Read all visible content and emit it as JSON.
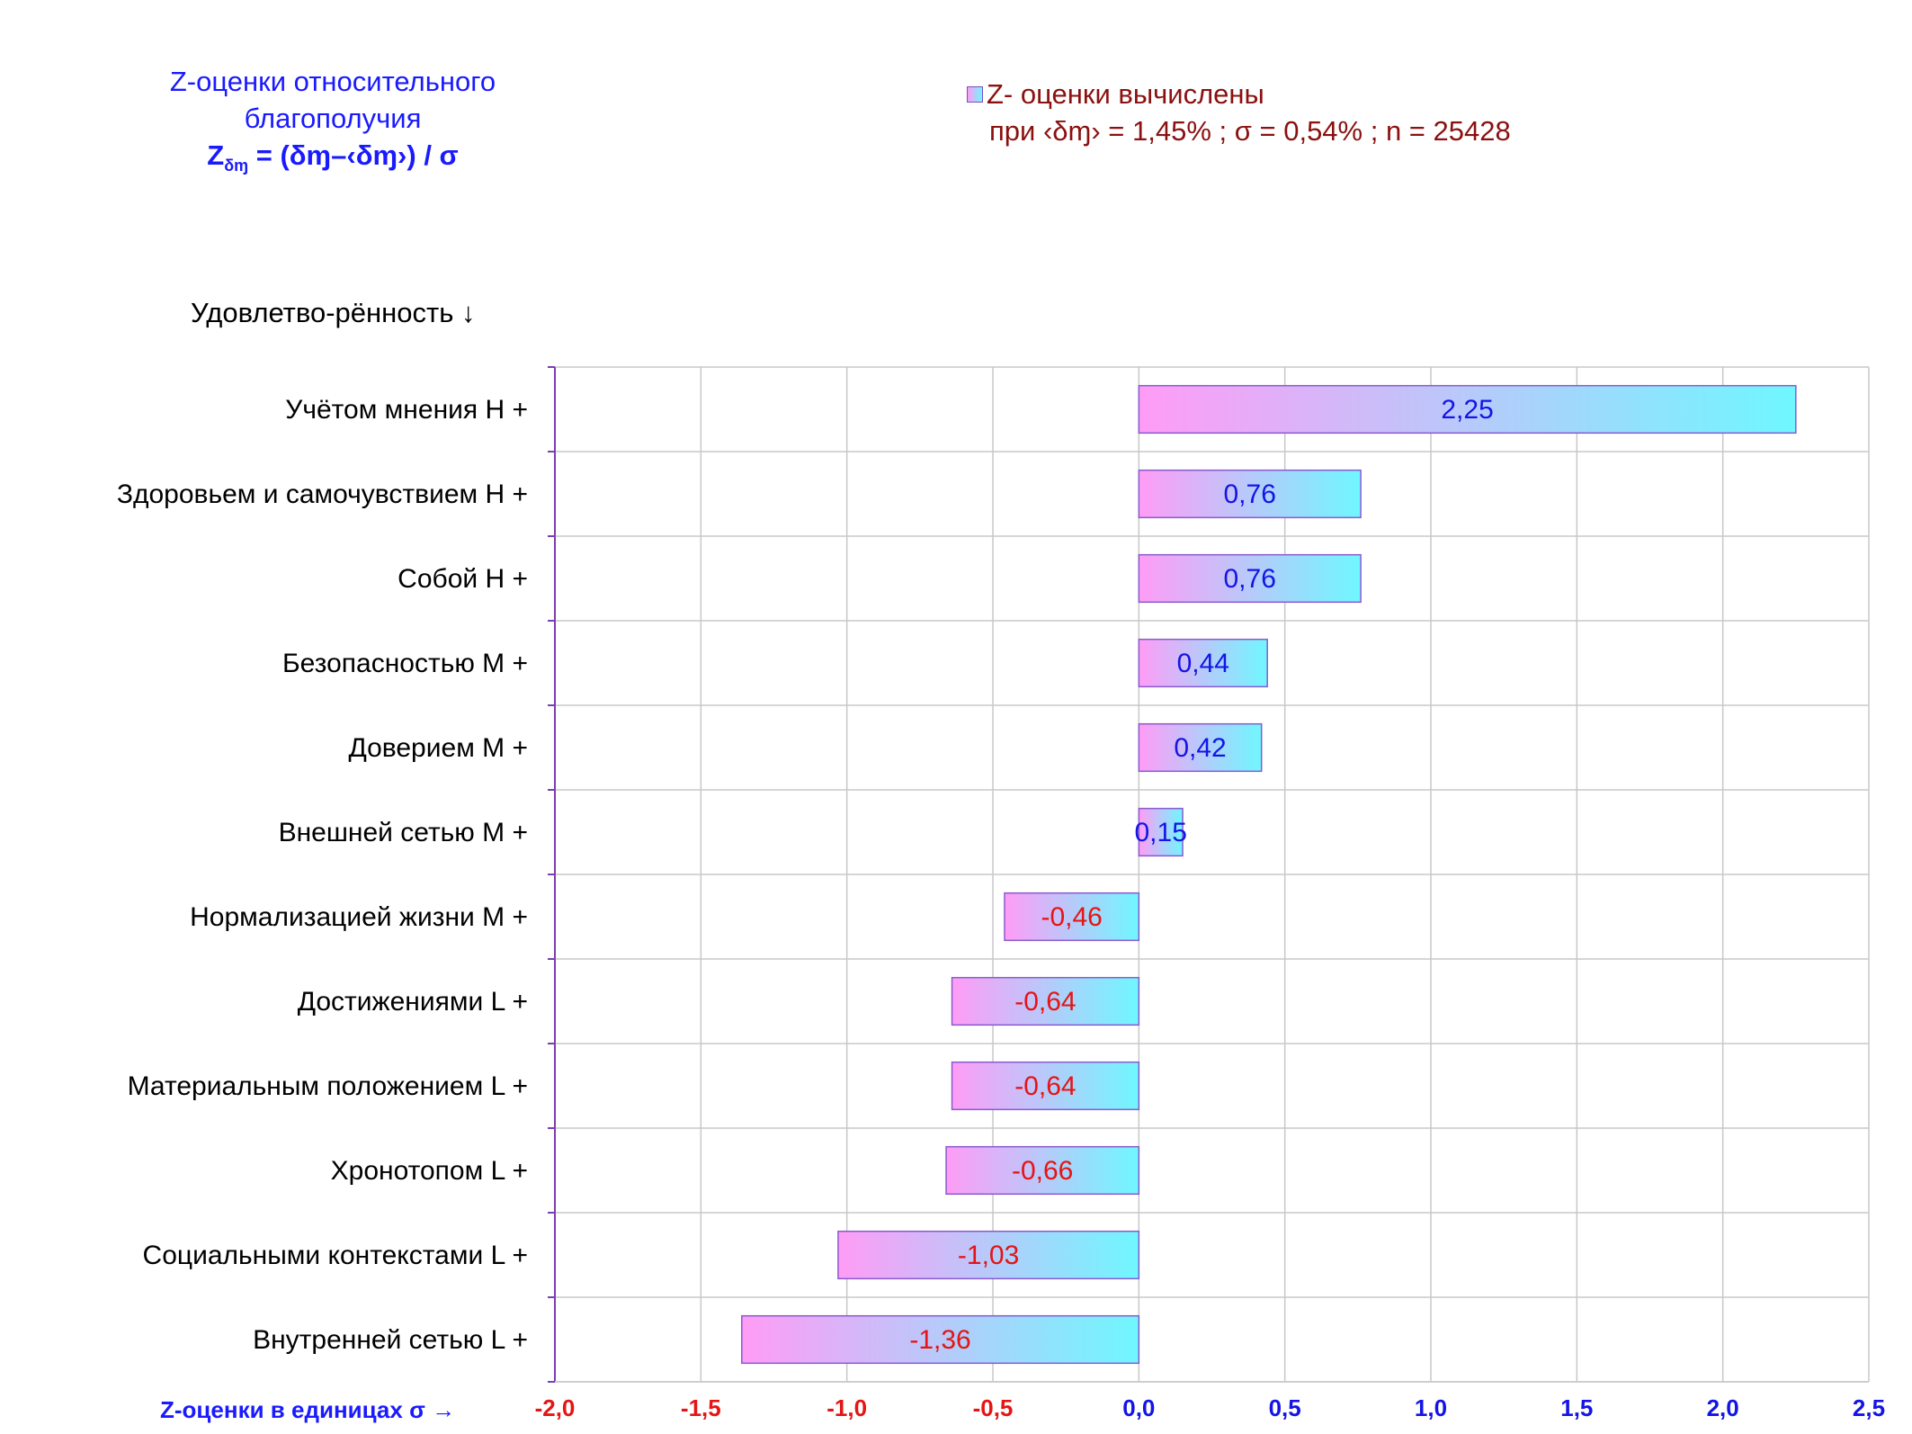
{
  "title": {
    "line1": "Z-оценки  относительного",
    "line2": "благополучия",
    "formula_z": "Z",
    "formula_sub": "δɱ",
    "formula_rest": " = (δɱ–‹δɱ›)  / σ"
  },
  "legend": {
    "line1": "Z- оценки вычислены",
    "line2": "при ‹δɱ› = 1,45% ; σ = 0,54% ; n = 25428"
  },
  "y_title": "Удовлетво-рённость ↓",
  "x_title": "Z-оценки в единицах σ →",
  "colors": {
    "bar_left": "#ff9cf5",
    "bar_right": "#6ff7ff",
    "bar_border": "#8a5ad0",
    "positive_label": "#1414e6",
    "negative_label": "#e61414",
    "axis": "#7a3fb0",
    "grid": "#c8c8c8"
  },
  "chart_data": {
    "type": "bar",
    "orientation": "horizontal",
    "categories": [
      "Учётом мнения  H +",
      "Здоровьем и самочувствием  H +",
      "Собой  H +",
      "Безопасностью  M +",
      "Доверием  M +",
      "Внешней сетью  M +",
      "Нормализацией жизни  M +",
      "Достижениями  L +",
      "Материальным положением  L +",
      "Хронотопом  L +",
      "Социальными контекстами  L +",
      "Внутренней сетью  L +"
    ],
    "values": [
      2.25,
      0.76,
      0.76,
      0.44,
      0.42,
      0.15,
      -0.46,
      -0.64,
      -0.64,
      -0.66,
      -1.03,
      -1.36
    ],
    "value_labels": [
      "2,25",
      "0,76",
      "0,76",
      "0,44",
      "0,42",
      "0,15",
      "-0,46",
      "-0,64",
      "-0,64",
      "-0,66",
      "-1,03",
      "-1,36"
    ],
    "xlim": [
      -2.0,
      2.5
    ],
    "x_ticks": [
      -2.0,
      -1.5,
      -1.0,
      -0.5,
      0.0,
      0.5,
      1.0,
      1.5,
      2.0,
      2.5
    ],
    "x_tick_labels": [
      "-2,0",
      "-1,5",
      "-1,0",
      "-0,5",
      "0,0",
      "0,5",
      "1,0",
      "1,5",
      "2,0",
      "2,5"
    ],
    "grid": true
  }
}
